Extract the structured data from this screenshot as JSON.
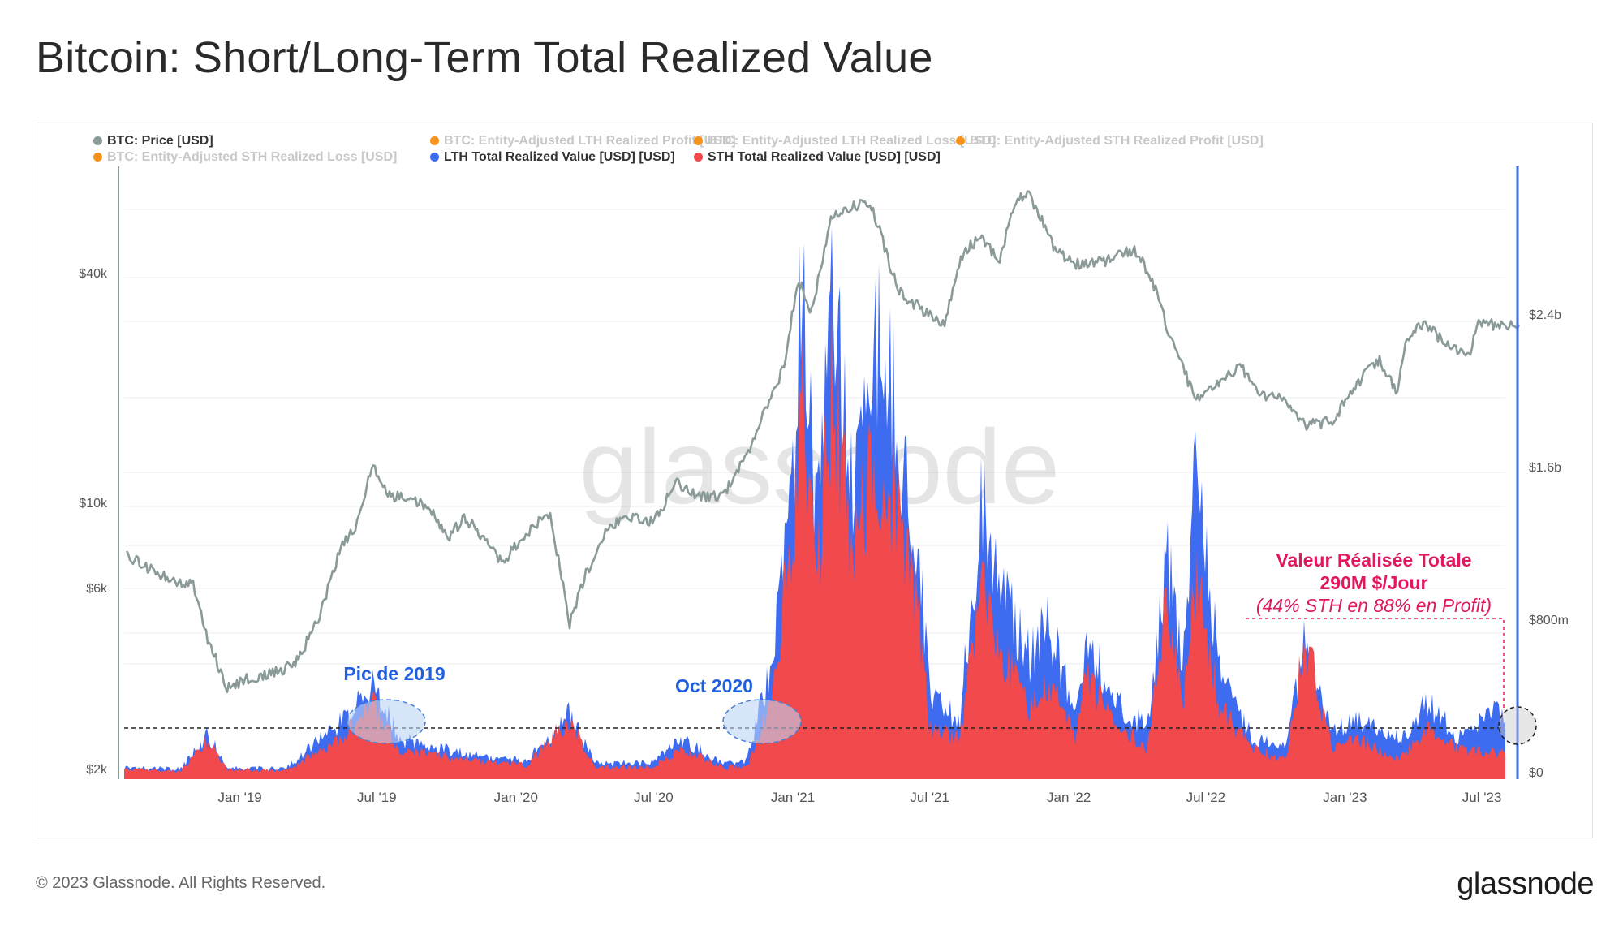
{
  "title": "Bitcoin: Short/Long-Term Total Realized Value",
  "footer": "© 2023 Glassnode. All Rights Reserved.",
  "brand": "glassnode",
  "watermark": "glassnode",
  "legend": [
    {
      "label": "BTC: Price [USD]",
      "color": "#8a9a99",
      "active": true
    },
    {
      "label": "BTC: Entity-Adjusted LTH Realized Profit [USD]",
      "color": "#f7931a",
      "active": false
    },
    {
      "label": "BTC: Entity-Adjusted LTH Realized Loss [USD]",
      "color": "#f7931a",
      "active": false
    },
    {
      "label": "BTC: Entity-Adjusted STH Realized Profit [USD]",
      "color": "#f7931a",
      "active": false
    },
    {
      "label": "BTC: Entity-Adjusted STH Realized Loss [USD]",
      "color": "#f7931a",
      "active": false
    },
    {
      "label": "LTH Total Realized Value [USD] [USD]",
      "color": "#3d6cf0",
      "active": true
    },
    {
      "label": "STH Total Realized Value [USD] [USD]",
      "color": "#f2494c",
      "active": true
    }
  ],
  "annotations": {
    "peak_2019": "Pic de 2019",
    "oct_2020": "Oct 2020",
    "total_line1": "Valeur Réalisée Totale",
    "total_line2": "290M $/Jour",
    "total_line3": "(44% STH en 88% en Profit)"
  },
  "chart_data": {
    "type": "area",
    "x_ticks": [
      "Jan '19",
      "Jul '19",
      "Jan '20",
      "Jul '20",
      "Jan '21",
      "Jul '21",
      "Jan '22",
      "Jul '22",
      "Jan '23",
      "Jul '23"
    ],
    "y_left_ticks": [
      "$40k",
      "$10k",
      "$6k",
      "$2k"
    ],
    "y_left_scale": "log",
    "y_right_ticks": [
      "$2.4b",
      "$1.6b",
      "$800m",
      "$0"
    ],
    "y_right_range": [
      0,
      2800000000
    ],
    "reference_line_value": 290000000,
    "series": [
      {
        "name": "BTC: Price [USD]",
        "axis": "left",
        "color": "#8a9a99",
        "x": [
          "2018-08-01",
          "2018-09-01",
          "2018-10-01",
          "2018-11-01",
          "2018-11-20",
          "2018-12-15",
          "2019-01-15",
          "2019-02-15",
          "2019-03-15",
          "2019-04-15",
          "2019-05-15",
          "2019-06-01",
          "2019-06-26",
          "2019-07-15",
          "2019-08-15",
          "2019-09-15",
          "2019-10-01",
          "2019-10-26",
          "2019-11-15",
          "2019-12-15",
          "2020-01-15",
          "2020-02-15",
          "2020-03-12",
          "2020-04-01",
          "2020-05-01",
          "2020-06-01",
          "2020-07-01",
          "2020-08-01",
          "2020-09-01",
          "2020-10-01",
          "2020-11-01",
          "2020-12-01",
          "2020-12-20",
          "2021-01-08",
          "2021-01-25",
          "2021-02-21",
          "2021-03-13",
          "2021-04-14",
          "2021-05-20",
          "2021-06-20",
          "2021-07-20",
          "2021-08-15",
          "2021-09-07",
          "2021-10-01",
          "2021-10-20",
          "2021-11-08",
          "2021-12-15",
          "2022-01-15",
          "2022-02-15",
          "2022-03-28",
          "2022-04-20",
          "2022-05-10",
          "2022-06-18",
          "2022-07-15",
          "2022-08-15",
          "2022-09-15",
          "2022-10-15",
          "2022-11-09",
          "2022-12-15",
          "2023-01-15",
          "2023-02-15",
          "2023-03-10",
          "2023-03-25",
          "2023-04-15",
          "2023-05-15",
          "2023-06-15",
          "2023-06-25",
          "2023-07-20"
        ],
        "values": [
          7600,
          7000,
          6500,
          6300,
          4500,
          3400,
          3600,
          3700,
          3900,
          5100,
          7900,
          8700,
          13000,
          10800,
          10500,
          9800,
          8300,
          9400,
          8500,
          7200,
          8600,
          9700,
          5000,
          6600,
          8800,
          9500,
          9200,
          11600,
          10700,
          10800,
          13700,
          19000,
          23500,
          40000,
          32000,
          57000,
          61000,
          63000,
          37000,
          33000,
          30000,
          47000,
          51000,
          44000,
          62000,
          67000,
          47000,
          43000,
          44000,
          47500,
          40000,
          30000,
          19000,
          21000,
          23500,
          19500,
          19300,
          16500,
          16800,
          21000,
          24300,
          20200,
          28000,
          30400,
          27000,
          25000,
          30500,
          30000
        ]
      },
      {
        "name": "LTH Total Realized Value [USD] [USD]",
        "axis": "right",
        "color": "#3d6cf0",
        "x": [
          "2018-08-01",
          "2018-10-15",
          "2018-11-20",
          "2018-12-15",
          "2019-03-01",
          "2019-05-15",
          "2019-06-26",
          "2019-08-01",
          "2019-11-01",
          "2020-01-15",
          "2020-03-12",
          "2020-04-15",
          "2020-07-01",
          "2020-08-05",
          "2020-10-01",
          "2020-11-01",
          "2020-12-01",
          "2021-01-05",
          "2021-01-11",
          "2021-02-01",
          "2021-02-22",
          "2021-03-20",
          "2021-04-18",
          "2021-05-19",
          "2021-06-15",
          "2021-07-01",
          "2021-08-10",
          "2021-09-07",
          "2021-10-10",
          "2021-11-10",
          "2021-12-04",
          "2022-01-10",
          "2022-01-24",
          "2022-03-01",
          "2022-04-15",
          "2022-05-10",
          "2022-06-01",
          "2022-06-18",
          "2022-07-20",
          "2022-09-01",
          "2022-10-15",
          "2022-11-09",
          "2022-12-15",
          "2023-01-15",
          "2023-03-15",
          "2023-04-20",
          "2023-06-01",
          "2023-07-20"
        ],
        "values": [
          60000000,
          50000000,
          220000000,
          60000000,
          50000000,
          280000000,
          480000000,
          200000000,
          120000000,
          90000000,
          320000000,
          80000000,
          80000000,
          200000000,
          80000000,
          90000000,
          550000000,
          1500000000,
          2650000000,
          1200000000,
          2500000000,
          1400000000,
          2200000000,
          1800000000,
          1200000000,
          400000000,
          300000000,
          1400000000,
          900000000,
          600000000,
          800000000,
          300000000,
          700000000,
          400000000,
          250000000,
          1100000000,
          600000000,
          1600000000,
          500000000,
          200000000,
          150000000,
          700000000,
          250000000,
          300000000,
          200000000,
          380000000,
          200000000,
          330000000
        ]
      },
      {
        "name": "STH Total Realized Value [USD] [USD]",
        "axis": "right",
        "color": "#f2494c",
        "x": [
          "2018-08-01",
          "2018-10-15",
          "2018-11-20",
          "2018-12-15",
          "2019-03-01",
          "2019-05-15",
          "2019-06-26",
          "2019-08-01",
          "2019-11-01",
          "2020-01-15",
          "2020-03-12",
          "2020-04-15",
          "2020-07-01",
          "2020-08-05",
          "2020-10-01",
          "2020-11-01",
          "2020-12-01",
          "2021-01-05",
          "2021-01-11",
          "2021-02-01",
          "2021-02-22",
          "2021-03-20",
          "2021-04-18",
          "2021-05-19",
          "2021-06-15",
          "2021-07-01",
          "2021-08-10",
          "2021-09-07",
          "2021-10-10",
          "2021-11-10",
          "2021-12-04",
          "2022-01-10",
          "2022-01-24",
          "2022-03-01",
          "2022-04-15",
          "2022-05-10",
          "2022-06-01",
          "2022-06-18",
          "2022-07-20",
          "2022-09-01",
          "2022-10-15",
          "2022-11-09",
          "2022-12-15",
          "2023-01-15",
          "2023-03-15",
          "2023-04-20",
          "2023-06-01",
          "2023-07-20"
        ],
        "values": [
          50000000,
          40000000,
          200000000,
          50000000,
          40000000,
          200000000,
          380000000,
          150000000,
          90000000,
          70000000,
          300000000,
          60000000,
          60000000,
          150000000,
          60000000,
          60000000,
          350000000,
          1300000000,
          2200000000,
          900000000,
          2000000000,
          1100000000,
          1600000000,
          1400000000,
          900000000,
          250000000,
          200000000,
          950000000,
          600000000,
          350000000,
          500000000,
          200000000,
          500000000,
          300000000,
          150000000,
          900000000,
          400000000,
          1000000000,
          350000000,
          150000000,
          100000000,
          700000000,
          150000000,
          200000000,
          100000000,
          270000000,
          150000000,
          130000000
        ]
      }
    ]
  }
}
